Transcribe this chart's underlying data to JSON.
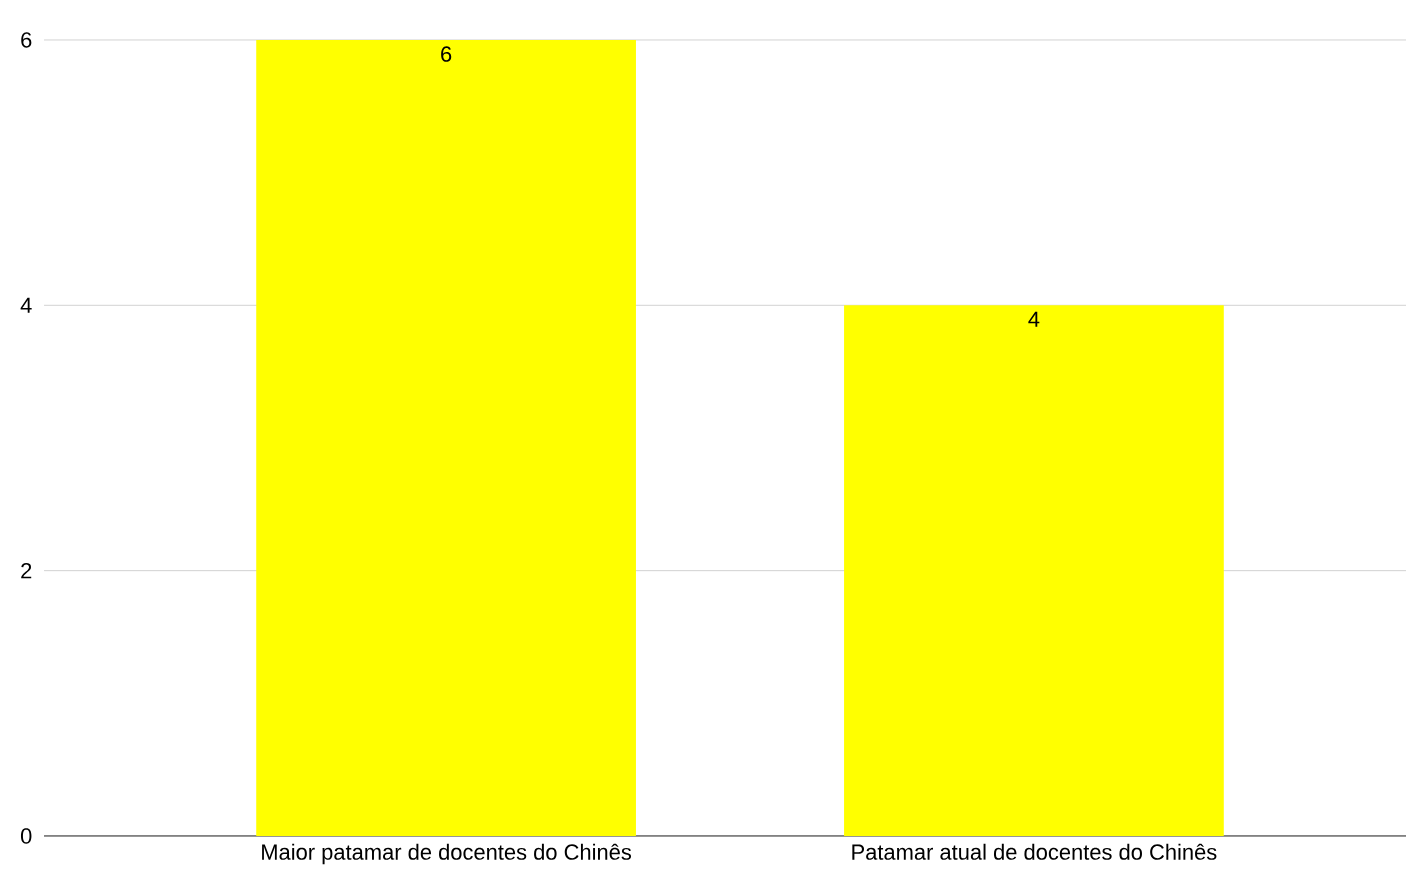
{
  "chart_data": {
    "type": "bar",
    "categories": [
      "Maior patamar de docentes do Chinês",
      "Patamar atual de docentes do Chinês"
    ],
    "values": [
      6,
      4
    ],
    "color": "#ffff00",
    "ylim": [
      0,
      6
    ],
    "yticks": [
      0,
      2,
      4,
      6
    ],
    "grid": "y",
    "data_labels": true
  }
}
